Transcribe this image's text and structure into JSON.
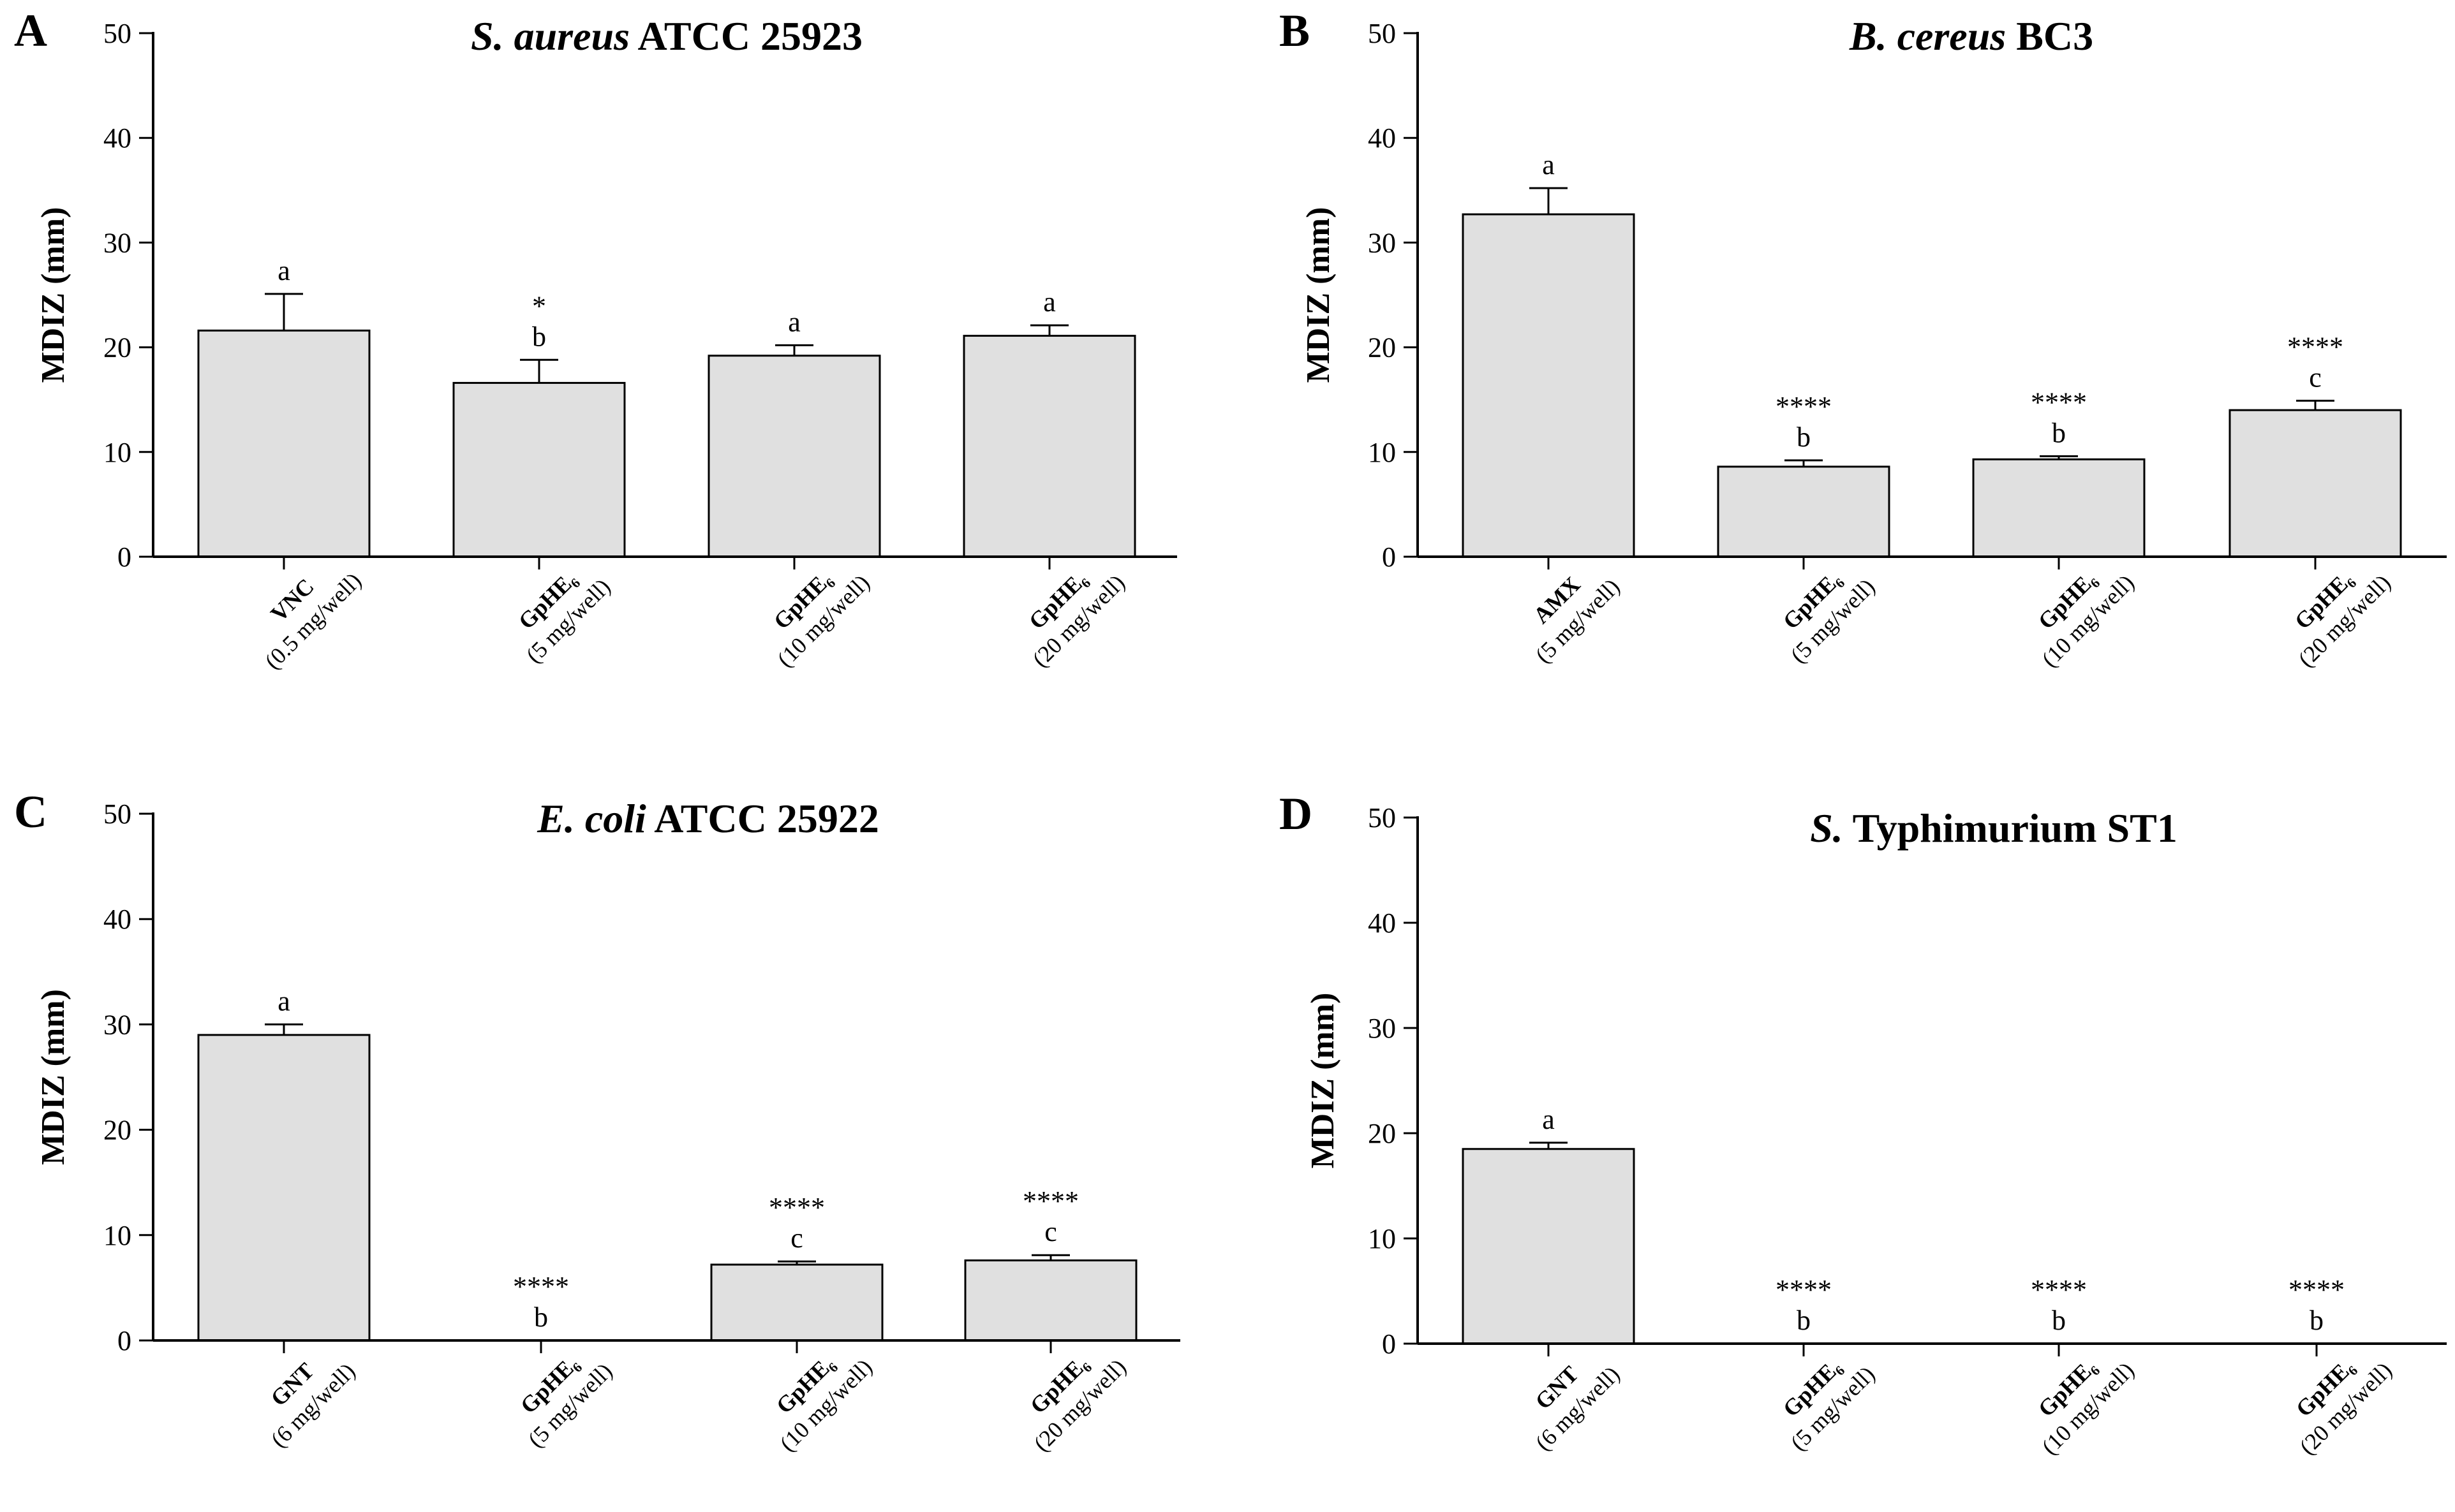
{
  "chart_data": [
    {
      "panel": "A",
      "type": "bar",
      "title": {
        "italic": "S. aureus",
        "rest": "ATCC 25923"
      },
      "ylabel": "MDIZ (mm)",
      "ylim": [
        0,
        50
      ],
      "yticks": [
        "0",
        "10",
        "20",
        "30",
        "40",
        "50"
      ],
      "categories": [
        {
          "name": "VNC",
          "sub": "(0.5 mg/well)"
        },
        {
          "name": "GpHE₆",
          "sub": "(5 mg/well)"
        },
        {
          "name": "GpHE₆",
          "sub": "(10 mg/well)"
        },
        {
          "name": "GpHE₆",
          "sub": "(20 mg/well)"
        }
      ],
      "values": [
        21.6,
        16.6,
        19.2,
        21.1
      ],
      "errors": [
        3.5,
        2.2,
        1.0,
        1.0
      ],
      "significance": [
        "",
        "*",
        "",
        ""
      ],
      "letters": [
        "a",
        "b",
        "a",
        "a"
      ]
    },
    {
      "panel": "B",
      "type": "bar",
      "title": {
        "italic": "B. cereus",
        "rest": "BC3"
      },
      "ylabel": "MDIZ (mm)",
      "ylim": [
        0,
        50
      ],
      "yticks": [
        "0",
        "10",
        "20",
        "30",
        "40",
        "50"
      ],
      "categories": [
        {
          "name": "AMX",
          "sub": "(5 mg/well)"
        },
        {
          "name": "GpHE₆",
          "sub": "(5 mg/well)"
        },
        {
          "name": "GpHE₆",
          "sub": "(10 mg/well)"
        },
        {
          "name": "GpHE₆",
          "sub": "(20 mg/well)"
        }
      ],
      "values": [
        32.7,
        8.6,
        9.3,
        14.0
      ],
      "errors": [
        2.5,
        0.6,
        0.3,
        0.9
      ],
      "significance": [
        "",
        "****",
        "****",
        "****"
      ],
      "letters": [
        "a",
        "b",
        "b",
        "c"
      ]
    },
    {
      "panel": "C",
      "type": "bar",
      "title": {
        "italic": "E. coli",
        "rest": "ATCC 25922"
      },
      "ylabel": "MDIZ (mm)",
      "ylim": [
        0,
        50
      ],
      "yticks": [
        "0",
        "10",
        "20",
        "30",
        "40",
        "50"
      ],
      "categories": [
        {
          "name": "GNT",
          "sub": "(6 mg/well)"
        },
        {
          "name": "GpHE₆",
          "sub": "(5 mg/well)"
        },
        {
          "name": "GpHE₆",
          "sub": "(10 mg/well)"
        },
        {
          "name": "GpHE₆",
          "sub": "(20 mg/well)"
        }
      ],
      "values": [
        29.0,
        0,
        7.2,
        7.6
      ],
      "errors": [
        1.0,
        0,
        0.3,
        0.5
      ],
      "significance": [
        "",
        "****",
        "****",
        "****"
      ],
      "letters": [
        "a",
        "b",
        "c",
        "c"
      ]
    },
    {
      "panel": "D",
      "type": "bar",
      "title": {
        "italic": "S.",
        "rest": "Typhimurium ST1"
      },
      "ylabel": "MDIZ (mm)",
      "ylim": [
        0,
        50
      ],
      "yticks": [
        "0",
        "10",
        "20",
        "30",
        "40",
        "50"
      ],
      "categories": [
        {
          "name": "GNT",
          "sub": "(6 mg/well)"
        },
        {
          "name": "GpHE₆",
          "sub": "(5 mg/well)"
        },
        {
          "name": "GpHE₆",
          "sub": "(10 mg/well)"
        },
        {
          "name": "GpHE₆",
          "sub": "(20 mg/well)"
        }
      ],
      "values": [
        18.5,
        0,
        0,
        0
      ],
      "errors": [
        0.6,
        0,
        0,
        0
      ],
      "significance": [
        "",
        "****",
        "****",
        "****"
      ],
      "letters": [
        "a",
        "b",
        "b",
        "b"
      ]
    }
  ]
}
